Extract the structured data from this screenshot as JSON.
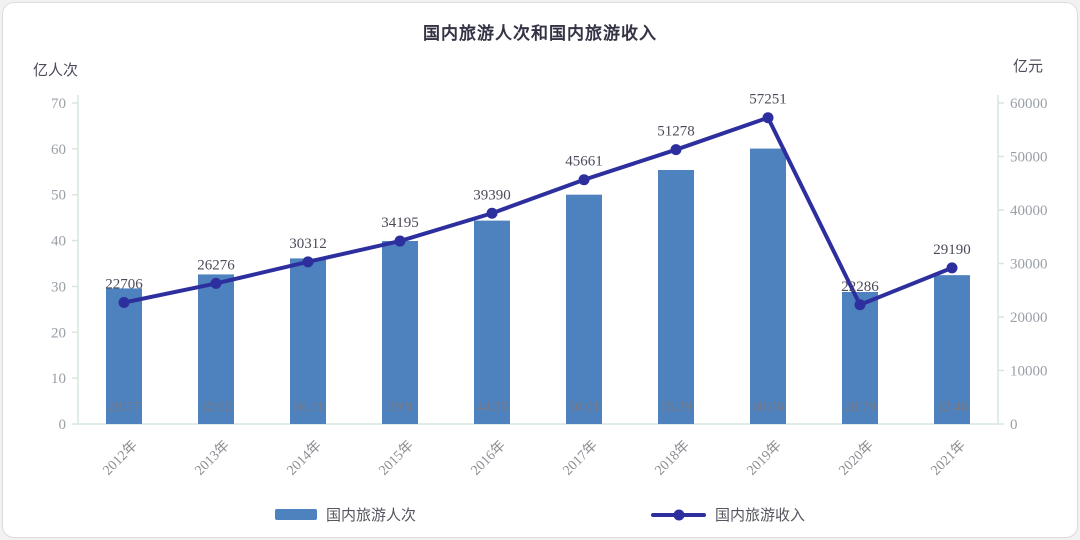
{
  "chart_data": {
    "type": "combo-bar-line",
    "title": "国内旅游人次和国内旅游收入",
    "categories": [
      "2012年",
      "2013年",
      "2014年",
      "2015年",
      "2016年",
      "2017年",
      "2018年",
      "2019年",
      "2020年",
      "2021年"
    ],
    "series": [
      {
        "name": "国内旅游人次",
        "type": "bar",
        "axis": "left",
        "color": "#4e82be",
        "values": [
          29.57,
          32.62,
          36.11,
          39.9,
          44.35,
          50.01,
          55.39,
          60.06,
          28.79,
          32.46
        ],
        "value_labels": [
          "29.57",
          "32.62",
          "36.11",
          "39.9",
          "44.35",
          "50.01",
          "55.39",
          "60.06",
          "28.79",
          "32.46"
        ]
      },
      {
        "name": "国内旅游收入",
        "type": "line",
        "axis": "right",
        "color": "#2e2f9e",
        "values": [
          22706,
          26276,
          30312,
          34195,
          39390,
          45661,
          51278,
          57251,
          22286,
          29190
        ],
        "value_labels": [
          "22706",
          "26276",
          "30312",
          "34195",
          "39390",
          "45661",
          "51278",
          "57251",
          "22286",
          "29190"
        ]
      }
    ],
    "ylabel_left": "亿人次",
    "ylabel_right": "亿元",
    "ylim_left": [
      0,
      70
    ],
    "ylim_right": [
      0,
      60000
    ],
    "left_ticks": [
      0,
      10,
      20,
      30,
      40,
      50,
      60,
      70
    ],
    "right_ticks": [
      0,
      10000,
      20000,
      30000,
      40000,
      50000,
      60000
    ],
    "grid": false,
    "legend_position": "bottom",
    "colors": {
      "bar": "#4e82be",
      "line": "#2e2f9e",
      "tick_label": "#9aa0a8",
      "axis_line": "#d7e6e1",
      "point_label": "#4b4b5a",
      "bar_label": "#7a7a85",
      "x_label": "#8c8c92"
    }
  }
}
